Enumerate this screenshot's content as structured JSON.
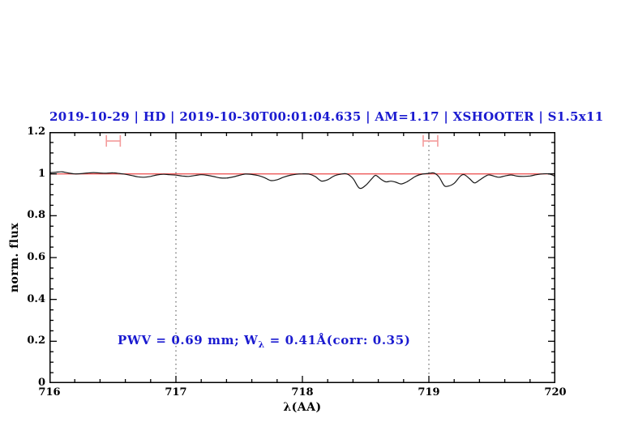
{
  "colors": {
    "label_blue": "#1a1ad0",
    "continuum_red": "#ee5a5a",
    "marker_pink": "#f49c9c",
    "spectrum_black": "#1a1a1a",
    "frame_black": "#000000",
    "gridline_gray": "#444444"
  },
  "chart_data": {
    "type": "line",
    "title": "2019-10-29 | HD | 2019-10-30T00:01:04.635 | AM=1.17 | XSHOOTER | S1.5x11",
    "xlabel": "λ(AA)",
    "ylabel": "norm. flux",
    "xlim": [
      716,
      720
    ],
    "ylim": [
      0,
      1.2
    ],
    "x_major_ticks": [
      716,
      717,
      718,
      719,
      720
    ],
    "x_tick_labels": [
      "716",
      "717",
      "718",
      "719",
      "720"
    ],
    "x_minor_step": 0.2,
    "y_major_ticks": [
      0,
      0.2,
      0.4,
      0.6,
      0.8,
      1,
      1.2
    ],
    "y_tick_labels": [
      "0",
      "0.2",
      "0.4",
      "0.6",
      "0.8",
      "1",
      "1.2"
    ],
    "y_minor_step": 0.05,
    "grid": "off",
    "vlines": {
      "style": "dotted-vertical",
      "x": [
        717,
        719
      ]
    },
    "annotation": {
      "text": "PWV = 0.69 mm; W_λ = 0.41Å(corr: 0.35)",
      "part1": "PWV  =  0.69  mm;  W",
      "sub": "λ",
      "part2": "  =  0.41Å(corr: 0.35)"
    },
    "range_markers": [
      {
        "x1": 716.45,
        "x2": 716.56,
        "y": 1.157,
        "cap_top": 1.185,
        "cap_bottom": 1.13
      },
      {
        "x1": 718.955,
        "x2": 719.07,
        "y": 1.157,
        "cap_top": 1.185,
        "cap_bottom": 1.13
      }
    ],
    "series": [
      {
        "name": "observed-spectrum",
        "points": [
          [
            716.0,
            1.005
          ],
          [
            716.05,
            1.008
          ],
          [
            716.1,
            1.01
          ],
          [
            716.15,
            1.004
          ],
          [
            716.2,
            1.0
          ],
          [
            716.25,
            1.001
          ],
          [
            716.3,
            1.004
          ],
          [
            716.35,
            1.006
          ],
          [
            716.4,
            1.004
          ],
          [
            716.45,
            1.003
          ],
          [
            716.5,
            1.005
          ],
          [
            716.55,
            1.002
          ],
          [
            716.6,
            0.998
          ],
          [
            716.65,
            0.992
          ],
          [
            716.7,
            0.986
          ],
          [
            716.75,
            0.984
          ],
          [
            716.8,
            0.988
          ],
          [
            716.85,
            0.995
          ],
          [
            716.9,
            0.998
          ],
          [
            716.95,
            0.996
          ],
          [
            717.0,
            0.994
          ],
          [
            717.05,
            0.99
          ],
          [
            717.1,
            0.988
          ],
          [
            717.15,
            0.992
          ],
          [
            717.2,
            0.996
          ],
          [
            717.25,
            0.993
          ],
          [
            717.3,
            0.987
          ],
          [
            717.35,
            0.981
          ],
          [
            717.4,
            0.98
          ],
          [
            717.45,
            0.985
          ],
          [
            717.5,
            0.993
          ],
          [
            717.55,
            0.999
          ],
          [
            717.6,
            0.997
          ],
          [
            717.65,
            0.992
          ],
          [
            717.7,
            0.982
          ],
          [
            717.75,
            0.968
          ],
          [
            717.8,
            0.972
          ],
          [
            717.85,
            0.984
          ],
          [
            717.9,
            0.993
          ],
          [
            717.95,
            0.998
          ],
          [
            718.0,
            1.0
          ],
          [
            718.05,
            0.999
          ],
          [
            718.1,
            0.988
          ],
          [
            718.15,
            0.966
          ],
          [
            718.2,
            0.972
          ],
          [
            718.25,
            0.99
          ],
          [
            718.3,
            0.998
          ],
          [
            718.35,
            1.0
          ],
          [
            718.4,
            0.978
          ],
          [
            718.45,
            0.932
          ],
          [
            718.5,
            0.945
          ],
          [
            718.55,
            0.978
          ],
          [
            718.58,
            0.993
          ],
          [
            718.62,
            0.975
          ],
          [
            718.66,
            0.962
          ],
          [
            718.7,
            0.965
          ],
          [
            718.74,
            0.96
          ],
          [
            718.78,
            0.952
          ],
          [
            718.82,
            0.96
          ],
          [
            718.86,
            0.975
          ],
          [
            718.9,
            0.99
          ],
          [
            718.95,
            0.999
          ],
          [
            719.0,
            1.002
          ],
          [
            719.04,
            1.004
          ],
          [
            719.08,
            0.985
          ],
          [
            719.12,
            0.945
          ],
          [
            719.15,
            0.941
          ],
          [
            719.2,
            0.955
          ],
          [
            719.25,
            0.99
          ],
          [
            719.28,
            0.996
          ],
          [
            719.32,
            0.978
          ],
          [
            719.36,
            0.957
          ],
          [
            719.4,
            0.97
          ],
          [
            719.45,
            0.99
          ],
          [
            719.48,
            0.995
          ],
          [
            719.55,
            0.984
          ],
          [
            719.6,
            0.99
          ],
          [
            719.65,
            0.995
          ],
          [
            719.7,
            0.989
          ],
          [
            719.75,
            0.988
          ],
          [
            719.8,
            0.99
          ],
          [
            719.85,
            0.996
          ],
          [
            719.9,
            1.0
          ],
          [
            719.95,
            1.0
          ],
          [
            720.0,
            0.988
          ]
        ]
      },
      {
        "name": "continuum-reference",
        "constant_y": 1.0
      }
    ]
  }
}
